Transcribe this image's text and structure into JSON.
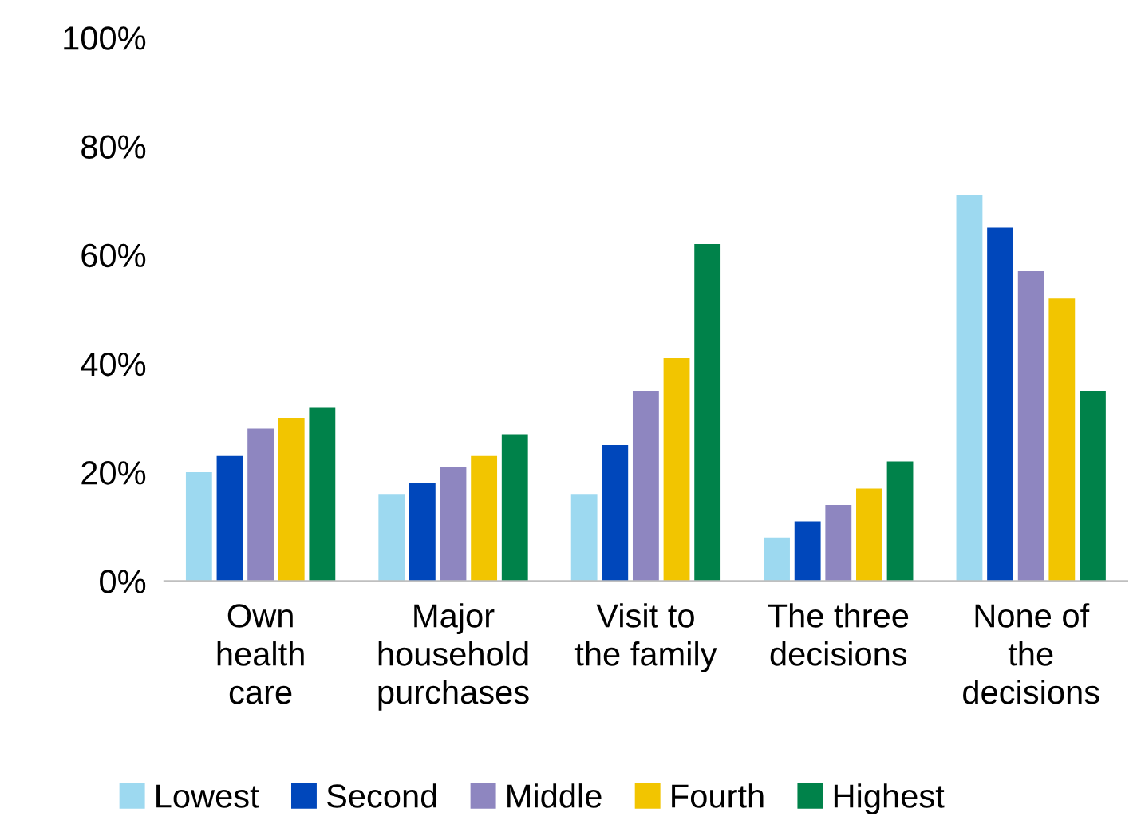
{
  "chart_data": {
    "type": "bar",
    "categories": [
      "Own\nhealth\ncare",
      "Major\nhousehold\npurchases",
      "Visit to\nthe family",
      "The three\ndecisions",
      "None of\nthe\ndecisions"
    ],
    "series": [
      {
        "name": "Lowest",
        "color": "#9dd9f0",
        "values": [
          20,
          16,
          16,
          8,
          71
        ]
      },
      {
        "name": "Second",
        "color": "#0047bb",
        "values": [
          23,
          18,
          25,
          11,
          65
        ]
      },
      {
        "name": "Middle",
        "color": "#8e86c0",
        "values": [
          28,
          21,
          35,
          14,
          57
        ]
      },
      {
        "name": "Fourth",
        "color": "#f2c500",
        "values": [
          30,
          23,
          41,
          17,
          52
        ]
      },
      {
        "name": "Highest",
        "color": "#00824a",
        "values": [
          32,
          27,
          62,
          22,
          35
        ]
      }
    ],
    "ylim": [
      0,
      100
    ],
    "yticks": [
      {
        "value": 0,
        "label": "0%"
      },
      {
        "value": 20,
        "label": "20%"
      },
      {
        "value": 40,
        "label": "40%"
      },
      {
        "value": 60,
        "label": "60%"
      },
      {
        "value": 80,
        "label": "80%"
      },
      {
        "value": 100,
        "label": "100%"
      }
    ],
    "grid": false,
    "legend": "bottom"
  }
}
